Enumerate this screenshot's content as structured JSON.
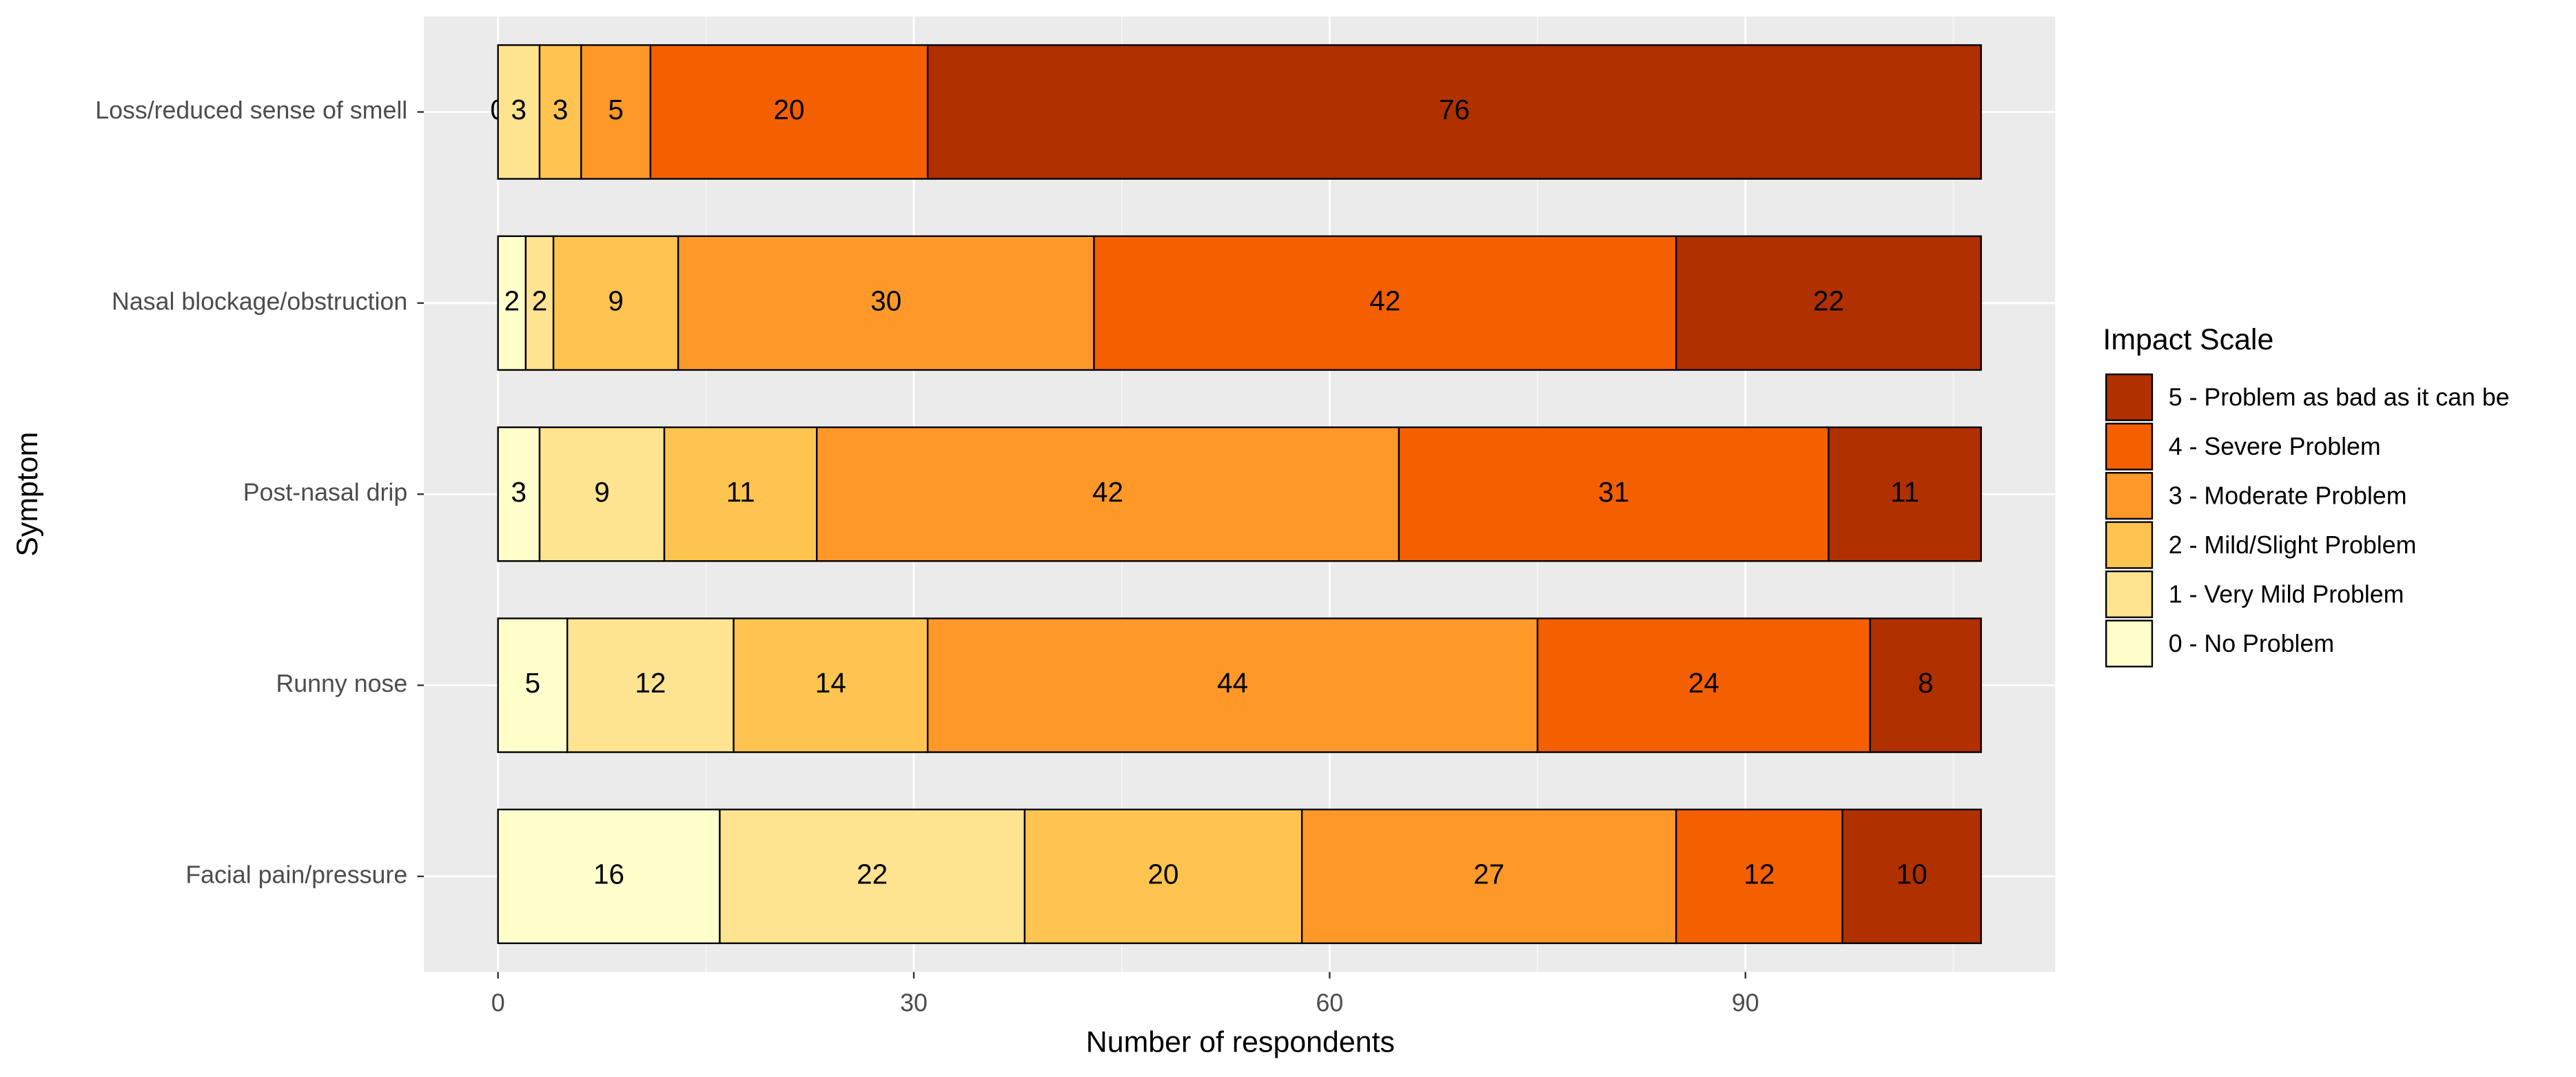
{
  "chart_data": {
    "type": "stacked-barh",
    "categories": [
      "Loss/reduced sense of smell",
      "Nasal blockage/obstruction",
      "Post-nasal drip",
      "Runny nose",
      "Facial pain/pressure"
    ],
    "series": [
      {
        "name": "0 - No Problem",
        "color": "#ffffcc",
        "values": [
          0,
          2,
          3,
          5,
          16
        ]
      },
      {
        "name": "1 - Very Mild Problem",
        "color": "#fee391",
        "values": [
          3,
          2,
          9,
          12,
          22
        ]
      },
      {
        "name": "2 - Mild/Slight Problem",
        "color": "#fec44f",
        "values": [
          3,
          9,
          11,
          14,
          20
        ]
      },
      {
        "name": "3 - Moderate Problem",
        "color": "#fe9929",
        "values": [
          5,
          30,
          42,
          44,
          27
        ]
      },
      {
        "name": "4 - Severe Problem",
        "color": "#f45f00",
        "values": [
          20,
          42,
          31,
          24,
          12
        ]
      },
      {
        "name": "5 - Problem as bad as it can be",
        "color": "#b03000",
        "values": [
          76,
          22,
          11,
          8,
          10
        ]
      }
    ],
    "x_label": "Number of respondents",
    "y_label": "Symptom",
    "legend_title": "Impact Scale",
    "xlim": [
      -5.35,
      112.35
    ],
    "xticks": [
      0,
      30,
      60,
      90
    ],
    "grid": true,
    "legend": "right"
  }
}
